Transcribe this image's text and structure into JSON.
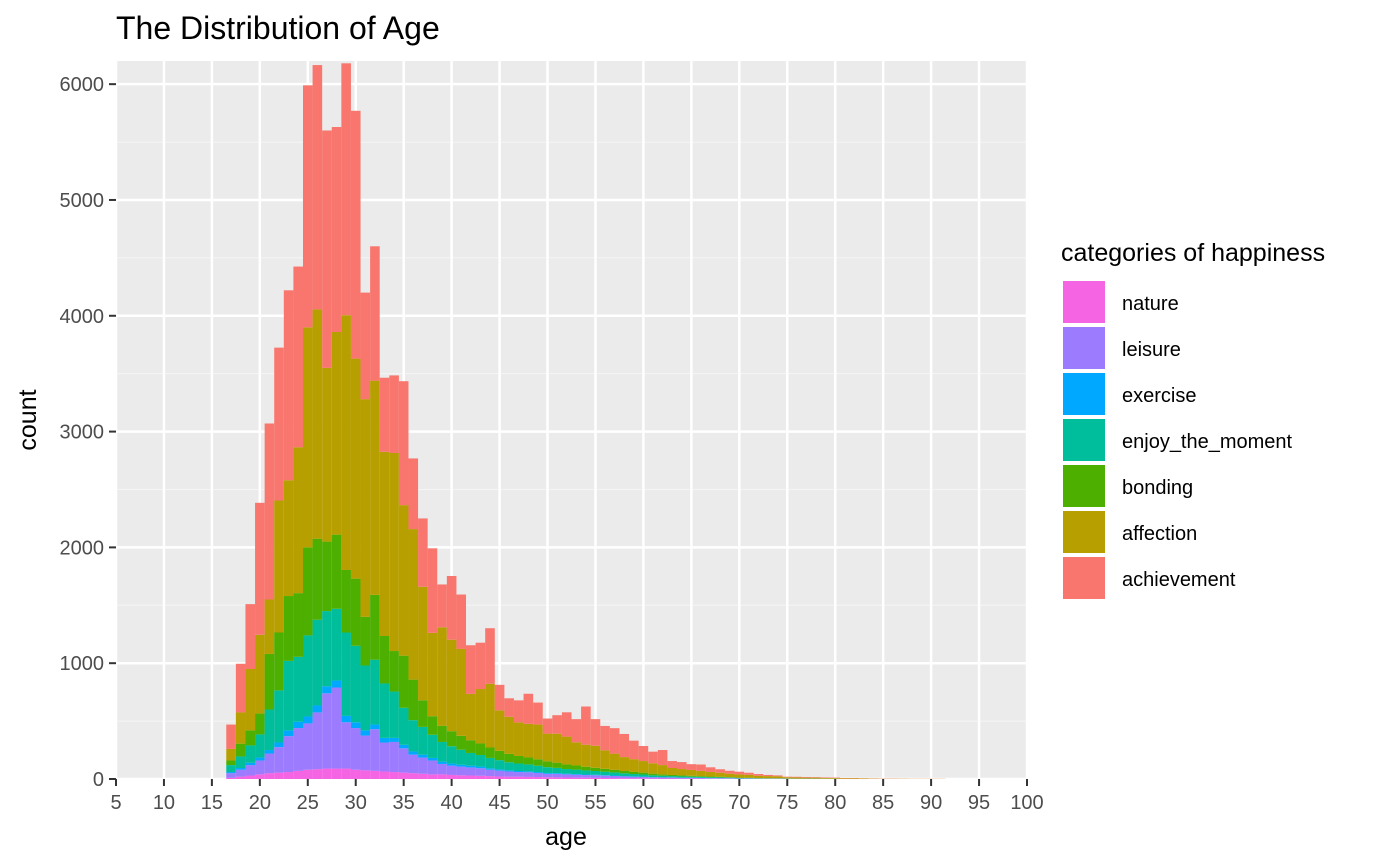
{
  "chart_data": {
    "type": "bar",
    "stacked": true,
    "title": "The Distribution of Age",
    "xlabel": "age",
    "ylabel": "count",
    "xlim": [
      5,
      100
    ],
    "ylim": [
      0,
      6200
    ],
    "x_ticks": [
      5,
      10,
      15,
      20,
      25,
      30,
      35,
      40,
      45,
      50,
      55,
      60,
      65,
      70,
      75,
      80,
      85,
      90,
      95,
      100
    ],
    "y_ticks": [
      0,
      1000,
      2000,
      3000,
      4000,
      5000,
      6000
    ],
    "bin_width": 1,
    "grid": true,
    "legend": {
      "title": "categories of happiness",
      "position": "right"
    },
    "x": [
      17,
      18,
      19,
      20,
      21,
      22,
      23,
      24,
      25,
      26,
      27,
      28,
      29,
      30,
      31,
      32,
      33,
      34,
      35,
      36,
      37,
      38,
      39,
      40,
      41,
      42,
      43,
      44,
      45,
      46,
      47,
      48,
      49,
      50,
      51,
      52,
      53,
      54,
      55,
      56,
      57,
      58,
      59,
      60,
      61,
      62,
      63,
      64,
      65,
      66,
      67,
      68,
      69,
      70,
      71,
      72,
      73,
      74,
      75,
      76,
      77,
      78,
      79,
      80,
      81,
      82,
      83,
      84,
      85,
      86,
      87,
      88,
      89,
      90,
      91,
      92,
      93,
      94,
      95,
      96
    ],
    "series": [
      {
        "name": "nature",
        "color": "#F564E3",
        "values": [
          10,
          20,
          30,
          40,
          50,
          55,
          60,
          70,
          80,
          85,
          90,
          90,
          90,
          80,
          75,
          70,
          65,
          60,
          55,
          50,
          45,
          40,
          40,
          35,
          32,
          30,
          28,
          25,
          22,
          20,
          20,
          18,
          17,
          15,
          14,
          13,
          12,
          11,
          10,
          9,
          8,
          7,
          6,
          6,
          5,
          4,
          4,
          3,
          3,
          3,
          2,
          2,
          2,
          1,
          1,
          1,
          1,
          1,
          1,
          1,
          1,
          1,
          0,
          0,
          0,
          0,
          0,
          0,
          0,
          0,
          0,
          0,
          0,
          0,
          0,
          0,
          0,
          0,
          0,
          0
        ]
      },
      {
        "name": "leisure",
        "color": "#9D7BFF",
        "values": [
          40,
          60,
          90,
          120,
          170,
          220,
          310,
          370,
          400,
          490,
          650,
          700,
          400,
          360,
          300,
          360,
          250,
          260,
          210,
          160,
          140,
          120,
          90,
          80,
          75,
          70,
          65,
          55,
          50,
          45,
          40,
          40,
          35,
          30,
          30,
          27,
          25,
          23,
          22,
          20,
          18,
          15,
          13,
          12,
          10,
          9,
          8,
          7,
          7,
          6,
          5,
          5,
          4,
          3,
          3,
          2,
          2,
          2,
          1,
          1,
          1,
          1,
          0,
          0,
          0,
          0,
          0,
          0,
          0,
          0,
          0,
          0,
          0,
          0,
          0,
          0,
          0,
          0,
          0,
          0
        ]
      },
      {
        "name": "exercise",
        "color": "#00A9FF",
        "values": [
          10,
          15,
          20,
          25,
          30,
          40,
          50,
          55,
          60,
          60,
          60,
          60,
          55,
          50,
          45,
          40,
          40,
          35,
          30,
          28,
          25,
          22,
          20,
          18,
          16,
          15,
          14,
          12,
          11,
          10,
          9,
          8,
          8,
          7,
          7,
          6,
          6,
          5,
          5,
          4,
          4,
          3,
          3,
          3,
          2,
          2,
          2,
          2,
          1,
          1,
          1,
          1,
          1,
          1,
          1,
          0,
          0,
          0,
          0,
          0,
          0,
          0,
          0,
          0,
          0,
          0,
          0,
          0,
          0,
          0,
          0,
          0,
          0,
          0,
          0,
          0,
          0,
          0,
          0,
          0
        ]
      },
      {
        "name": "enjoy_the_moment",
        "color": "#00BE9C",
        "values": [
          60,
          100,
          150,
          200,
          350,
          450,
          600,
          560,
          700,
          740,
          650,
          620,
          720,
          660,
          560,
          560,
          470,
          400,
          320,
          270,
          240,
          200,
          170,
          150,
          130,
          110,
          100,
          90,
          80,
          70,
          65,
          60,
          55,
          50,
          45,
          40,
          38,
          35,
          32,
          30,
          27,
          24,
          21,
          18,
          15,
          13,
          11,
          10,
          9,
          8,
          7,
          6,
          5,
          4,
          3,
          3,
          2,
          2,
          2,
          1,
          1,
          1,
          1,
          1,
          0,
          0,
          0,
          0,
          0,
          0,
          0,
          0,
          0,
          0,
          0,
          0,
          0,
          0,
          0,
          0
        ]
      },
      {
        "name": "bonding",
        "color": "#4DAF00",
        "values": [
          40,
          110,
          130,
          180,
          480,
          500,
          560,
          550,
          760,
          700,
          600,
          640,
          540,
          580,
          420,
          560,
          410,
          350,
          450,
          350,
          230,
          160,
          140,
          130,
          120,
          110,
          100,
          90,
          80,
          72,
          65,
          60,
          55,
          50,
          45,
          40,
          36,
          32,
          28,
          25,
          22,
          20,
          18,
          16,
          14,
          12,
          10,
          9,
          8,
          7,
          6,
          5,
          4,
          3,
          3,
          2,
          2,
          2,
          1,
          1,
          1,
          1,
          1,
          1,
          0,
          0,
          0,
          0,
          0,
          0,
          0,
          0,
          0,
          0,
          0,
          0,
          0,
          0,
          0,
          0
        ]
      },
      {
        "name": "affection",
        "color": "#B79F00",
        "values": [
          100,
          270,
          530,
          680,
          470,
          1140,
          1000,
          1260,
          1900,
          1980,
          1500,
          1750,
          2200,
          1900,
          1880,
          1850,
          1590,
          1710,
          1300,
          1300,
          980,
          720,
          850,
          790,
          750,
          400,
          470,
          550,
          350,
          320,
          290,
          290,
          300,
          240,
          250,
          240,
          200,
          190,
          190,
          160,
          140,
          120,
          110,
          100,
          90,
          80,
          60,
          55,
          50,
          45,
          40,
          35,
          30,
          28,
          25,
          20,
          18,
          16,
          10,
          10,
          8,
          8,
          6,
          6,
          5,
          5,
          4,
          3,
          2,
          2,
          2,
          1,
          1,
          1,
          1,
          0,
          0,
          0,
          0,
          0
        ]
      },
      {
        "name": "achievement",
        "color": "#F8766D",
        "values": [
          210,
          420,
          560,
          1140,
          1520,
          1320,
          1640,
          1560,
          2090,
          2110,
          2050,
          1770,
          2175,
          2140,
          920,
          1160,
          640,
          670,
          1070,
          610,
          590,
          730,
          370,
          550,
          470,
          420,
          400,
          480,
          220,
          160,
          190,
          260,
          190,
          130,
          160,
          210,
          200,
          330,
          230,
          210,
          220,
          200,
          160,
          130,
          100,
          130,
          60,
          60,
          50,
          55,
          40,
          30,
          25,
          23,
          18,
          15,
          10,
          8,
          5,
          5,
          5,
          4,
          5,
          4,
          3,
          3,
          2,
          2,
          2,
          2,
          1,
          1,
          1,
          1,
          1,
          0,
          0,
          0,
          0,
          0
        ]
      }
    ]
  }
}
